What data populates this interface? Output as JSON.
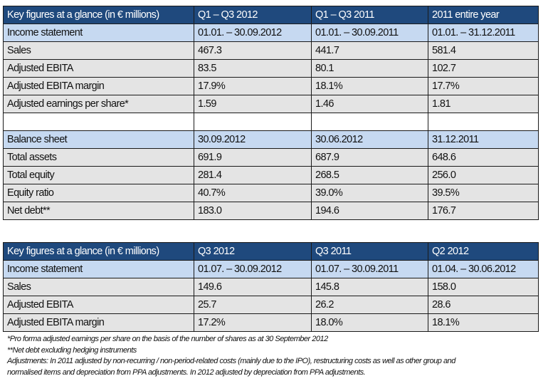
{
  "table1": {
    "header": [
      "Key figures at a glance (in € millions)",
      "Q1 – Q3 2012",
      "Q1 – Q3 2011",
      "2011 entire year"
    ],
    "rows": [
      {
        "type": "sub",
        "cells": [
          "Income statement",
          "01.01. – 30.09.2012",
          "01.01. – 30.09.2011",
          "01.01. – 31.12.2011"
        ]
      },
      {
        "type": "data",
        "cells": [
          "Sales",
          "467.3",
          "441.7",
          "581.4"
        ]
      },
      {
        "type": "data",
        "cells": [
          "Adjusted EBITA",
          "83.5",
          "80.1",
          "102.7"
        ]
      },
      {
        "type": "data",
        "cells": [
          "Adjusted EBITA margin",
          "17.9%",
          "18.1%",
          "17.7%"
        ]
      },
      {
        "type": "data",
        "cells": [
          "Adjusted earnings per share*",
          "1.59",
          "1.46",
          "1.81"
        ]
      },
      {
        "type": "empty",
        "cells": [
          "",
          "",
          "",
          ""
        ]
      },
      {
        "type": "sub",
        "cells": [
          "Balance sheet",
          "30.09.2012",
          "30.06.2012",
          "31.12.2011"
        ]
      },
      {
        "type": "data",
        "cells": [
          "Total assets",
          "691.9",
          "687.9",
          "648.6"
        ]
      },
      {
        "type": "data",
        "cells": [
          "Total equity",
          "281.4",
          "268.5",
          "256.0"
        ]
      },
      {
        "type": "data",
        "cells": [
          "Equity ratio",
          "40.7%",
          "39.0%",
          "39.5%"
        ]
      },
      {
        "type": "data",
        "cells": [
          "Net debt**",
          "183.0",
          "194.6",
          "176.7"
        ]
      }
    ]
  },
  "table2": {
    "header": [
      "Key figures at a glance (in € millions)",
      "Q3 2012",
      "Q3 2011",
      "Q2 2012"
    ],
    "rows": [
      {
        "type": "sub",
        "cells": [
          "Income statement",
          "01.07. – 30.09.2012",
          "01.07. – 30.09.2011",
          " 01.04. – 30.06.2012"
        ]
      },
      {
        "type": "data",
        "cells": [
          "Sales",
          "149.6",
          "145.8",
          "158.0"
        ]
      },
      {
        "type": "data",
        "cells": [
          "Adjusted EBITA",
          "25.7",
          "26.2",
          "28.6"
        ]
      },
      {
        "type": "data",
        "cells": [
          "Adjusted EBITA margin",
          "17.2%",
          "18.0%",
          "18.1%"
        ]
      }
    ]
  },
  "notes": [
    "*Pro forma adjusted earnings per share on the basis of the number of shares as at 30 September 2012",
    "**Net debt excluding hedging instruments",
    "Adjustments: In 2011 adjusted by non-recurring / non-period-related costs (mainly due to the IPO), restructuring costs as well as other group and",
    "normalised items and depreciation from PPA adjustments. In 2012 adjusted by depreciation from PPA adjustments."
  ]
}
